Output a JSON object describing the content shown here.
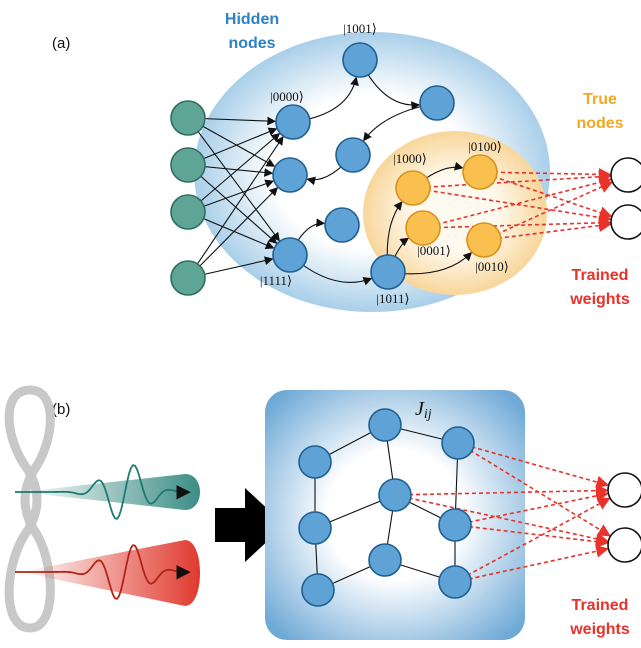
{
  "panel_a": {
    "label": "(a)",
    "hidden_nodes": [
      "Hidden",
      "nodes"
    ],
    "true_nodes": [
      "True",
      "nodes"
    ],
    "trained_weights": [
      "Trained",
      "weights"
    ],
    "kets": [
      "|1001⟩",
      "|0000⟩",
      "|1000⟩",
      "|0100⟩",
      "|0001⟩",
      "|0010⟩",
      "|1111⟩",
      "|1011⟩"
    ]
  },
  "panel_b": {
    "label": "(b)",
    "coupling": {
      "symbol": "J",
      "subscript": "ij"
    },
    "trained_weights": [
      "Trained",
      "weights"
    ]
  }
}
